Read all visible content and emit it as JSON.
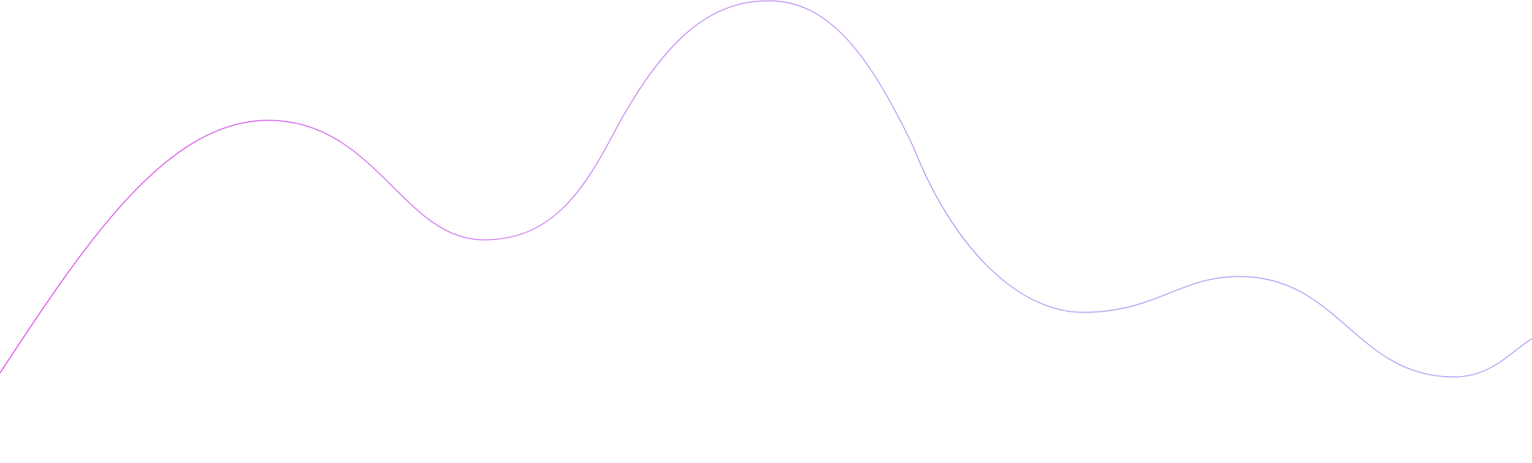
{
  "decoration": {
    "wave": {
      "gradient_start_color": "#e040e8",
      "gradient_mid_color": "#c18cf0",
      "gradient_end_color": "#a7a3f5"
    }
  }
}
